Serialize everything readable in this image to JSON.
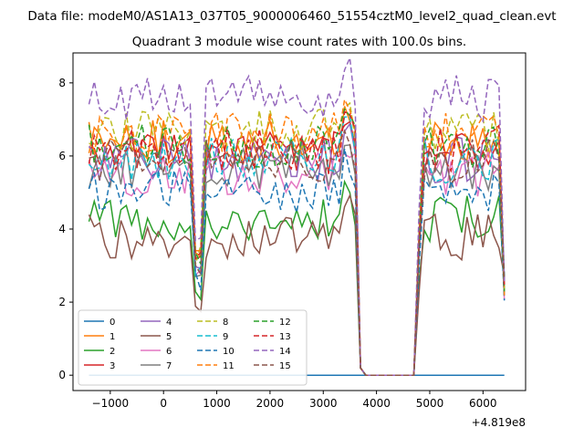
{
  "figure": {
    "suptitle": "Data file: modeM0/AS1A13_037T05_9000006460_51554cztM0_level2_quad_clean.evt"
  },
  "chart_data": {
    "type": "line",
    "title": "Quadrant 3 module wise count rates with 100.0s bins.",
    "xlabel": "",
    "ylabel": "",
    "x_offset_label": "+4.819e8",
    "xlim": [
      -1700,
      6800
    ],
    "ylim": [
      -0.42,
      8.82
    ],
    "x_ticks": [
      -1000,
      0,
      1000,
      2000,
      3000,
      4000,
      5000,
      6000
    ],
    "x_tick_labels": [
      "−1000",
      "0",
      "1000",
      "2000",
      "3000",
      "4000",
      "5000",
      "6000"
    ],
    "y_ticks": [
      0,
      2,
      4,
      6,
      8
    ],
    "y_tick_labels": [
      "0",
      "2",
      "4",
      "6",
      "8"
    ],
    "grid": false,
    "legend": {
      "loc": "lower left",
      "ncol": 4
    },
    "x_segments": [
      {
        "start": -1400,
        "end": 3700,
        "step": 100
      },
      {
        "start": 3700,
        "end": 4700,
        "step": 100
      },
      {
        "start": 4700,
        "end": 6400,
        "step": 100
      }
    ],
    "series": [
      {
        "name": "0",
        "color": "#1f77b4",
        "dash": "solid",
        "base": 0.0,
        "constant": true
      },
      {
        "name": "1",
        "color": "#ff7f0e",
        "dash": "solid",
        "base": 6.4
      },
      {
        "name": "2",
        "color": "#2ca02c",
        "dash": "solid",
        "base": 4.3
      },
      {
        "name": "3",
        "color": "#d62728",
        "dash": "solid",
        "base": 6.1
      },
      {
        "name": "4",
        "color": "#9467bd",
        "dash": "solid",
        "base": 5.9
      },
      {
        "name": "5",
        "color": "#8c564b",
        "dash": "solid",
        "base": 3.8
      },
      {
        "name": "6",
        "color": "#e377c2",
        "dash": "solid",
        "base": 5.5
      },
      {
        "name": "7",
        "color": "#7f7f7f",
        "dash": "solid",
        "base": 5.7
      },
      {
        "name": "8",
        "color": "#bcbd22",
        "dash": "dashed",
        "base": 6.7
      },
      {
        "name": "9",
        "color": "#17becf",
        "dash": "dashed",
        "base": 5.9
      },
      {
        "name": "10",
        "color": "#1f77b4",
        "dash": "dashed",
        "base": 5.0
      },
      {
        "name": "11",
        "color": "#ff7f0e",
        "dash": "dashed",
        "base": 6.6
      },
      {
        "name": "12",
        "color": "#2ca02c",
        "dash": "dashed",
        "base": 6.3
      },
      {
        "name": "13",
        "color": "#d62728",
        "dash": "dashed",
        "base": 6.2
      },
      {
        "name": "14",
        "color": "#9467bd",
        "dash": "dashed",
        "base": 7.6
      },
      {
        "name": "15",
        "color": "#8c564b",
        "dash": "dashed",
        "base": 5.9
      }
    ]
  }
}
